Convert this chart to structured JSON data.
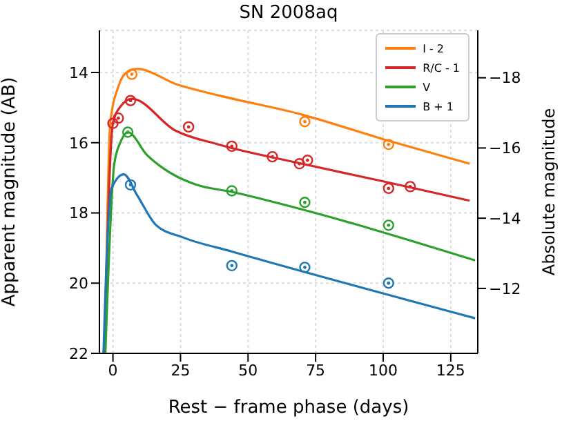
{
  "chart_data": {
    "type": "line",
    "title": "SN 2008aq",
    "xlabel": "Rest − frame phase (days)",
    "ylabel": "Apparent magnitude (AB)",
    "y2label": "Absolute magnitude",
    "xlim": [
      -5,
      135
    ],
    "xticks": [
      0,
      25,
      50,
      75,
      100,
      125
    ],
    "ylim": [
      22,
      12.8
    ],
    "yticks": [
      14,
      16,
      18,
      20,
      22
    ],
    "y2lim": [
      -10.15,
      -19.35
    ],
    "y2ticks": [
      {
        "value": -18,
        "label": "−18"
      },
      {
        "value": -16,
        "label": "−16"
      },
      {
        "value": -14,
        "label": "−14"
      },
      {
        "value": -12,
        "label": "−12"
      }
    ],
    "grid": true,
    "legend": "top right",
    "series": [
      {
        "type": "line",
        "name": "I - 2",
        "color": "#ff7f0e",
        "marker": "none",
        "x": [
          -3,
          -1,
          2,
          5,
          9,
          24,
          39,
          70,
          100,
          132
        ],
        "values": [
          22,
          15.45,
          14.4,
          14.0,
          13.9,
          14.35,
          14.65,
          15.2,
          15.9,
          16.6
        ]
      },
      {
        "type": "line",
        "name": "R/C - 1",
        "color": "#d62728",
        "marker": "none",
        "x": [
          -3.2,
          0,
          3,
          7,
          23,
          39,
          70,
          100,
          132
        ],
        "values": [
          22,
          15.45,
          14.95,
          14.75,
          15.65,
          16.05,
          16.6,
          17.1,
          17.65
        ]
      },
      {
        "type": "line",
        "name": "V",
        "color": "#2ca02c",
        "marker": "none",
        "x": [
          -2.8,
          0.5,
          3,
          5.5,
          12.6,
          19,
          31,
          44,
          60,
          134
        ],
        "values": [
          22,
          16.6,
          15.95,
          15.7,
          16.35,
          16.75,
          17.2,
          17.4,
          17.7,
          19.35
        ]
      },
      {
        "type": "line",
        "name": "B + 1",
        "color": "#1f77b4",
        "marker": "none",
        "x": [
          -3.5,
          -2,
          -0.5,
          4,
          9,
          16,
          26,
          44,
          134
        ],
        "values": [
          22,
          18.7,
          17.3,
          16.9,
          17.5,
          18.35,
          18.7,
          19.1,
          21.0
        ]
      },
      {
        "type": "scatter",
        "color": "#ff7f0e",
        "marker": "circle",
        "x": [
          7,
          71,
          102
        ],
        "values": [
          14.05,
          15.4,
          16.05
        ]
      },
      {
        "type": "scatter",
        "color": "#d62728",
        "marker": "circle",
        "x": [
          0,
          2,
          6.5,
          28,
          44,
          59,
          69,
          72,
          102,
          110
        ],
        "values": [
          15.45,
          15.3,
          14.8,
          15.55,
          16.1,
          16.4,
          16.6,
          16.5,
          17.3,
          17.25
        ]
      },
      {
        "type": "scatter",
        "color": "#2ca02c",
        "marker": "circle",
        "x": [
          5.5,
          44,
          71,
          102
        ],
        "values": [
          15.7,
          17.37,
          17.7,
          18.35
        ]
      },
      {
        "type": "scatter",
        "color": "#1f77b4",
        "marker": "circle",
        "x": [
          6.5,
          44,
          71,
          102
        ],
        "values": [
          17.2,
          19.5,
          19.55,
          20.0
        ]
      }
    ]
  }
}
